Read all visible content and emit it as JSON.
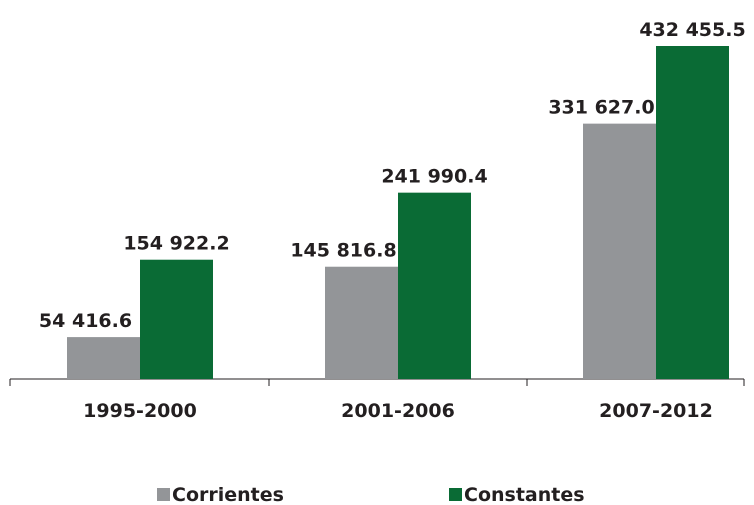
{
  "chart_data": {
    "type": "bar",
    "categories": [
      "1995-2000",
      "2001-2006",
      "2007-2012"
    ],
    "series": [
      {
        "name": "Corrientes",
        "color": "#939598",
        "values": [
          54416.6,
          145816.8,
          331627.0
        ],
        "value_labels": [
          "54 416.6",
          "145 816.8",
          "331 627.0"
        ]
      },
      {
        "name": "Constantes",
        "color": "#0a6b35",
        "values": [
          154922.2,
          241990.4,
          432455.5
        ],
        "value_labels": [
          "154 922.2",
          "241 990.4",
          "432 455.5"
        ]
      }
    ]
  }
}
